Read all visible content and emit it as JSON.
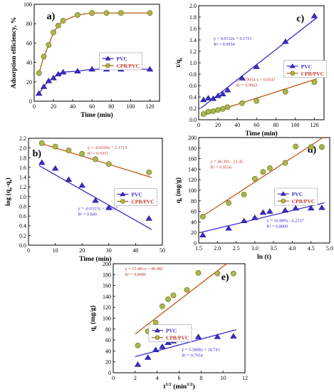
{
  "colors": {
    "pvc": "#3a2ccf",
    "cpb": "#9aa83a",
    "cpb_fill": "#a8b84a",
    "cpb_line": "#c0570e",
    "pvc_line": "#3a2ccf",
    "fit_text_pvc": "#3a2ccf",
    "fit_text_cpb": "#c0392b",
    "axis": "#000000"
  },
  "chart_data": [
    {
      "panel": "a)",
      "type": "line",
      "xlabel": "Time (min)",
      "ylabel": "Adsorption efficiency, %",
      "xlim": [
        0,
        130
      ],
      "ylim": [
        0,
        100
      ],
      "xticks": [
        0,
        20,
        40,
        60,
        80,
        100,
        120
      ],
      "yticks": [
        0,
        20,
        40,
        60,
        80,
        100
      ],
      "legend_position": "center-right",
      "series": [
        {
          "name": "PVC",
          "marker": "triangle",
          "x": [
            5,
            10,
            15,
            20,
            25,
            30,
            45,
            60,
            75,
            90,
            120
          ],
          "y": [
            8,
            15,
            21,
            24,
            28,
            30,
            31,
            33,
            33,
            33,
            33
          ]
        },
        {
          "name": "CPB/PVC",
          "marker": "circle",
          "x": [
            5,
            10,
            15,
            20,
            25,
            30,
            45,
            60,
            75,
            90,
            120
          ],
          "y": [
            29,
            46,
            58,
            71,
            78,
            83,
            89,
            91,
            91,
            91,
            91
          ]
        }
      ]
    },
    {
      "panel": "c)",
      "type": "scatter",
      "xlabel": "Time (min)",
      "ylabel": "t/q",
      "ylabel_sub": "t",
      "xlim": [
        0,
        130
      ],
      "ylim": [
        0,
        2.0
      ],
      "xticks": [
        0,
        20,
        40,
        60,
        80,
        100,
        120
      ],
      "yticks": [
        "0.0",
        "0.2",
        "0.4",
        "0.6",
        "0.8",
        "1.0",
        "1.2",
        "1.4",
        "1.6",
        "1.8",
        "2.0"
      ],
      "legend_position": "center-right",
      "series": [
        {
          "name": "PVC",
          "marker": "triangle",
          "x": [
            5,
            10,
            15,
            20,
            25,
            30,
            45,
            60,
            90,
            120
          ],
          "y": [
            0.35,
            0.38,
            0.37,
            0.42,
            0.45,
            0.52,
            0.73,
            0.93,
            1.37,
            1.82
          ],
          "fit": {
            "slope": 0.0132,
            "intercept": 0.1731,
            "equation": "y = 0.0132x + 0.1731",
            "r2": "R² = 0.9954"
          }
        },
        {
          "name": "CPB/PVC",
          "marker": "circle",
          "x": [
            5,
            10,
            15,
            20,
            25,
            30,
            45,
            60,
            90,
            120
          ],
          "y": [
            0.1,
            0.14,
            0.15,
            0.17,
            0.19,
            0.22,
            0.29,
            0.33,
            0.49,
            0.66
          ],
          "fit": {
            "slope": 0.0054,
            "intercept": 0.0547,
            "equation": "y = 0.0054 x + 0.0547",
            "r2": "R² = 0.9963"
          }
        }
      ]
    },
    {
      "panel": "b)",
      "type": "scatter",
      "xlabel": "Time (min)",
      "ylabel": "log (q",
      "ylabel_parts": [
        "log (q",
        "e",
        "-q",
        "t",
        ")"
      ],
      "xlim": [
        0,
        50
      ],
      "ylim": [
        0,
        2.2
      ],
      "xticks": [
        0,
        10,
        20,
        30,
        40,
        50
      ],
      "yticks": [
        "0.0",
        "0.2",
        "0.4",
        "0.6",
        "0.8",
        "1.0",
        "1.2",
        "1.4",
        "1.6",
        "1.8",
        "2.0",
        "2.2"
      ],
      "legend_position": "center-right",
      "series": [
        {
          "name": "PVC",
          "marker": "triangle",
          "x": [
            5,
            10,
            15,
            20,
            25,
            30,
            45
          ],
          "y": [
            1.7,
            1.58,
            1.35,
            1.23,
            0.92,
            0.77,
            0.55
          ],
          "fit": {
            "slope": -0.0313,
            "intercept": 1.7617,
            "equation": "y = -0.0313x + 1.7617",
            "r2": "R² = 0.849"
          }
        },
        {
          "name": "CPB/PVC",
          "marker": "circle",
          "x": [
            5,
            10,
            15,
            20,
            25,
            30,
            45
          ],
          "y": [
            2.1,
            2.03,
            1.95,
            1.88,
            1.77,
            1.67,
            1.5
          ],
          "fit": {
            "slope": -0.0169,
            "intercept": 2.1713,
            "equation": "y = -0.0169x + 2.1713",
            "r2": "R² = 0.9351"
          }
        }
      ]
    },
    {
      "panel": "d)",
      "type": "scatter",
      "xlabel": "ln (t)",
      "ylabel": "q",
      "ylabel_sub": "t",
      "ylabel_tail": " (mg/g)",
      "xlim": [
        1.5,
        5.0
      ],
      "ylim": [
        0,
        200
      ],
      "xticks": [
        "1.5",
        "2.0",
        "2.5",
        "3.0",
        "3.5",
        "4.0",
        "4.5",
        "5.0"
      ],
      "yticks": [
        0,
        20,
        40,
        60,
        80,
        100,
        120,
        140,
        160,
        180,
        200
      ],
      "legend_position": "center-right",
      "series": [
        {
          "name": "PVC",
          "marker": "triangle",
          "x": [
            1.61,
            2.3,
            2.71,
            3.0,
            3.22,
            3.4,
            3.81,
            4.09,
            4.5,
            4.79
          ],
          "y": [
            15,
            28,
            42,
            48,
            58,
            60,
            62,
            66,
            66,
            67
          ],
          "fit": {
            "slope": 16.989,
            "intercept": -6.2337,
            "equation": "y = 16.989x - 6.2337",
            "r2": "R² = 0.8809"
          }
        },
        {
          "name": "CPB/PVC",
          "marker": "circle",
          "x": [
            1.61,
            2.3,
            2.71,
            3.0,
            3.22,
            3.4,
            3.81,
            4.09,
            4.5,
            4.79
          ],
          "y": [
            50,
            76,
            92,
            122,
            135,
            142,
            152,
            183,
            182,
            182
          ],
          "fit": {
            "slope": 46.39,
            "intercept": -23.45,
            "equation": "y = 46.39x - 23.45",
            "r2": "R² = 0.9556"
          }
        }
      ]
    },
    {
      "panel": "e)",
      "type": "scatter",
      "xlabel": "t",
      "xlabel_sup": "1/2",
      "xlabel_tail": " (min",
      "xlabel_sup2": "1/2",
      "xlabel_end": ")",
      "ylabel": "q",
      "ylabel_sub": "t",
      "ylabel_tail": " (mg/g)",
      "xlim": [
        0,
        12
      ],
      "ylim": [
        0,
        200
      ],
      "xticks": [
        0,
        2,
        4,
        6,
        8,
        10,
        12
      ],
      "yticks": [
        0,
        20,
        40,
        60,
        80,
        100,
        120,
        140,
        160,
        180,
        200
      ],
      "legend_position": "center-right",
      "series": [
        {
          "name": "PVC",
          "marker": "triangle",
          "x": [
            2.24,
            3.16,
            3.87,
            4.47,
            5.0,
            5.48,
            6.71,
            7.75,
            9.49,
            10.95
          ],
          "y": [
            15,
            28,
            42,
            48,
            55,
            58,
            62,
            66,
            66,
            67
          ],
          "fit": {
            "slope": 5.3808,
            "intercept": 18.743,
            "equation": "y = 5.3808x + 18.743",
            "r2": "R² = 0.7054"
          }
        },
        {
          "name": "CPB/PVC",
          "marker": "circle",
          "x": [
            2.24,
            3.16,
            3.87,
            4.47,
            5.0,
            5.48,
            6.71,
            7.75,
            9.49,
            10.95
          ],
          "y": [
            50,
            76,
            92,
            122,
            135,
            142,
            152,
            183,
            182,
            182
          ],
          "fit": {
            "slope": 15.481,
            "intercept": 40.085,
            "equation": "y = 15.481x + 40.085",
            "r2": "R² = 0.8496"
          }
        }
      ]
    }
  ]
}
